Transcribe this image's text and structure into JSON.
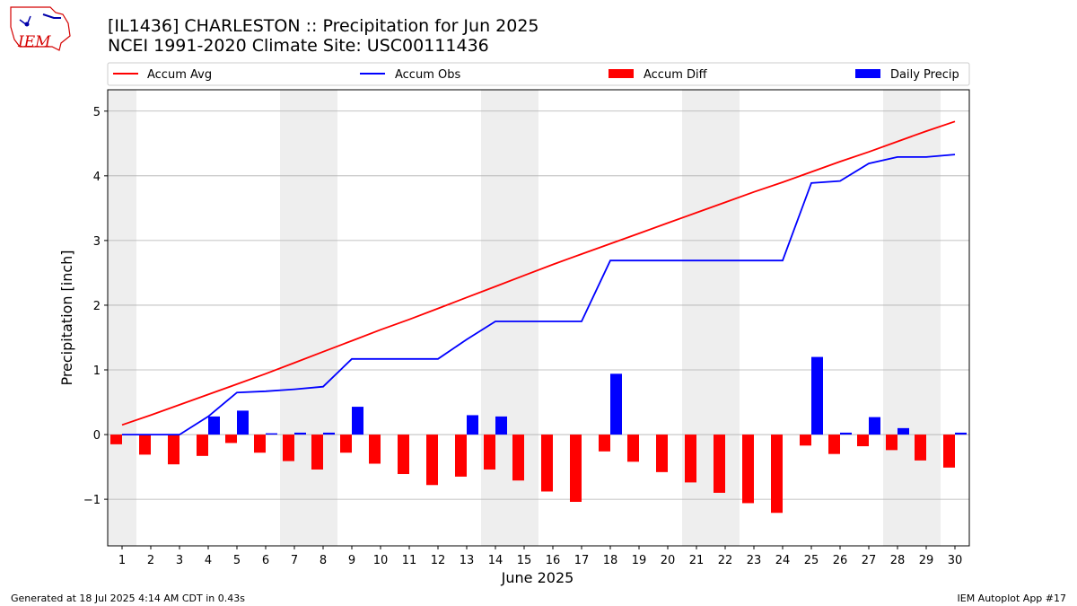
{
  "header": {
    "title_line1": "[IL1436] CHARLESTON :: Precipitation for Jun 2025",
    "title_line2": "NCEI 1991-2020 Climate Site: USC00111436"
  },
  "logo": {
    "text": "IEM"
  },
  "footer": {
    "left": "Generated at 18 Jul 2025 4:14 AM CDT in 0.43s",
    "right": "IEM Autoplot App #17"
  },
  "colors": {
    "avg": "#ff0000",
    "obs": "#0000ff",
    "diff": "#ff0000",
    "daily": "#0000ff",
    "weekend_band": "#eeeeee",
    "grid": "#b0b0b0"
  },
  "chart_data": {
    "type": "bar",
    "xlabel": "June 2025",
    "ylabel": "Precipitation [inch]",
    "xlim": [
      0.5,
      30.5
    ],
    "ylim": [
      -1.72,
      5.33
    ],
    "yticks": [
      -1,
      0,
      1,
      2,
      3,
      4,
      5
    ],
    "ytick_labels": [
      "−1",
      "0",
      "1",
      "2",
      "3",
      "4",
      "5"
    ],
    "days": [
      1,
      2,
      3,
      4,
      5,
      6,
      7,
      8,
      9,
      10,
      11,
      12,
      13,
      14,
      15,
      16,
      17,
      18,
      19,
      20,
      21,
      22,
      23,
      24,
      25,
      26,
      27,
      28,
      29,
      30
    ],
    "day_labels": [
      "1",
      "2",
      "3",
      "4",
      "5",
      "6",
      "7",
      "8",
      "9",
      "10",
      "11",
      "12",
      "13",
      "14",
      "15",
      "16",
      "17",
      "18",
      "19",
      "20",
      "21",
      "22",
      "23",
      "24",
      "25",
      "26",
      "27",
      "28",
      "29",
      "30"
    ],
    "weekend_bands": [
      [
        0.5,
        1.5
      ],
      [
        6.5,
        8.5
      ],
      [
        13.5,
        15.5
      ],
      [
        20.5,
        22.5
      ],
      [
        27.5,
        29.5
      ]
    ],
    "grid": true,
    "legend_position": "top",
    "legend": [
      "Accum Avg",
      "Accum Obs",
      "Accum Diff",
      "Daily Precip"
    ],
    "series": [
      {
        "name": "Accum Avg",
        "kind": "line",
        "values": [
          0.15,
          0.3,
          0.46,
          0.62,
          0.78,
          0.94,
          1.11,
          1.28,
          1.45,
          1.62,
          1.78,
          1.95,
          2.12,
          2.29,
          2.46,
          2.63,
          2.79,
          2.95,
          3.11,
          3.27,
          3.43,
          3.59,
          3.75,
          3.9,
          4.06,
          4.22,
          4.37,
          4.53,
          4.69,
          4.84
        ]
      },
      {
        "name": "Accum Obs",
        "kind": "line",
        "values": [
          0.0,
          0.0,
          0.0,
          0.28,
          0.65,
          0.67,
          0.7,
          0.74,
          1.17,
          1.17,
          1.17,
          1.17,
          1.47,
          1.75,
          1.75,
          1.75,
          1.75,
          2.69,
          2.69,
          2.69,
          2.69,
          2.69,
          2.69,
          2.69,
          3.89,
          3.92,
          4.19,
          4.29,
          4.29,
          4.33
        ]
      },
      {
        "name": "Accum Diff",
        "kind": "bar",
        "values": [
          -0.15,
          -0.31,
          -0.46,
          -0.33,
          -0.13,
          -0.28,
          -0.41,
          -0.54,
          -0.28,
          -0.45,
          -0.61,
          -0.78,
          -0.65,
          -0.54,
          -0.71,
          -0.88,
          -1.04,
          -0.26,
          -0.42,
          -0.58,
          -0.74,
          -0.9,
          -1.06,
          -1.21,
          -0.17,
          -0.3,
          -0.18,
          -0.24,
          -0.4,
          -0.51
        ]
      },
      {
        "name": "Daily Precip",
        "kind": "bar",
        "values": [
          0.0,
          0.0,
          0.0,
          0.28,
          0.37,
          0.02,
          0.03,
          0.03,
          0.43,
          0.0,
          0.0,
          0.0,
          0.3,
          0.28,
          0.0,
          0.0,
          0.0,
          0.94,
          0.0,
          0.0,
          0.0,
          0.0,
          0.0,
          0.0,
          1.2,
          0.03,
          0.27,
          0.1,
          0.0,
          0.03
        ]
      }
    ]
  }
}
